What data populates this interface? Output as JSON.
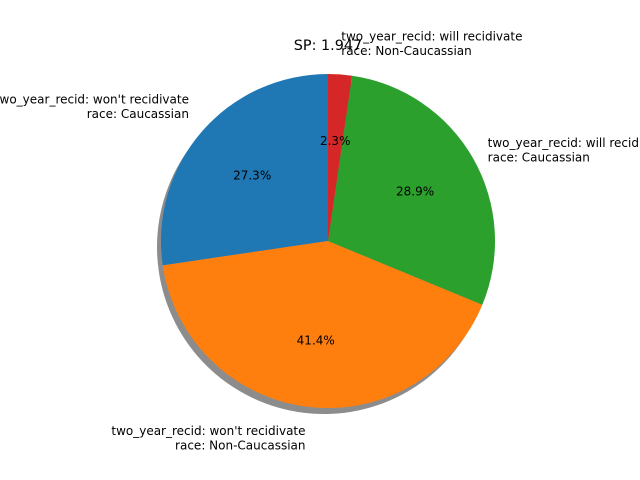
{
  "chart_data": {
    "type": "pie",
    "title": "SP: 1.947",
    "shadow": true,
    "start_angle_deg": 90,
    "direction": "counterclockwise",
    "slices": [
      {
        "label_lines": [
          "two_year_recid: won't recidivate",
          "race: Caucassian"
        ],
        "value": 27.3,
        "pct_label": "27.3%",
        "color": "#1f77b4"
      },
      {
        "label_lines": [
          "two_year_recid: won't recidivate",
          "race: Non-Caucassian"
        ],
        "value": 41.4,
        "pct_label": "41.4%",
        "color": "#ff7f0e"
      },
      {
        "label_lines": [
          "two_year_recid: will recidivate",
          "race: Caucassian"
        ],
        "value": 28.9,
        "pct_label": "28.9%",
        "color": "#2ca02c"
      },
      {
        "label_lines": [
          "two_year_recid: will recidivate",
          "race: Non-Caucassian"
        ],
        "value": 2.3,
        "pct_label": "2.3%",
        "color": "#d62728"
      }
    ]
  }
}
